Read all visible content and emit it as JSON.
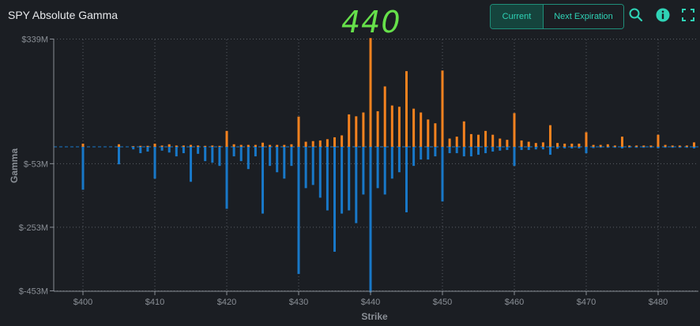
{
  "header": {
    "title": "SPY Absolute Gamma",
    "price_label": "440",
    "tab_current": "Current",
    "tab_next": "Next Expiration",
    "icons": [
      "search-icon",
      "info-icon",
      "fullscreen-icon"
    ]
  },
  "colors": {
    "positive": "#f5821f",
    "negative": "#1878c8",
    "accent": "#2fd3b6",
    "price": "#66e04a"
  },
  "chart_data": {
    "type": "bar",
    "title": "SPY Absolute Gamma",
    "xlabel": "Strike",
    "ylabel": "Gamma",
    "units": "$M",
    "xlim": [
      396,
      485
    ],
    "ylim": [
      -453,
      339
    ],
    "yticks": [
      339,
      -53,
      -253,
      -453
    ],
    "ytick_labels": [
      "$339M",
      "$-53M",
      "$-253M",
      "$-453M"
    ],
    "xticks": [
      400,
      410,
      420,
      430,
      440,
      450,
      460,
      470,
      480
    ],
    "xtick_labels": [
      "$400",
      "$410",
      "$420",
      "$430",
      "$440",
      "$450",
      "$460",
      "$470",
      "$480"
    ],
    "legend": "none",
    "grid": "dotted",
    "series": [
      {
        "key": "call",
        "x": [
          400,
          405,
          407,
          408,
          409,
          410,
          411,
          412,
          413,
          414,
          415,
          416,
          417,
          418,
          419,
          420,
          421,
          422,
          423,
          424,
          425,
          426,
          427,
          428,
          429,
          430,
          431,
          432,
          433,
          434,
          435,
          436,
          437,
          438,
          439,
          440,
          441,
          442,
          443,
          444,
          445,
          446,
          447,
          448,
          449,
          450,
          451,
          452,
          453,
          454,
          455,
          456,
          457,
          458,
          459,
          460,
          461,
          462,
          463,
          464,
          465,
          466,
          467,
          468,
          469,
          470,
          471,
          472,
          473,
          474,
          475,
          476,
          477,
          478,
          479,
          480,
          481,
          482,
          483,
          484,
          485
        ],
        "values": [
          10,
          8,
          2,
          3,
          3,
          10,
          4,
          8,
          4,
          4,
          6,
          4,
          3,
          4,
          3,
          50,
          8,
          6,
          6,
          6,
          13,
          6,
          6,
          6,
          8,
          95,
          16,
          18,
          20,
          24,
          30,
          36,
          102,
          96,
          108,
          342,
          112,
          190,
          130,
          126,
          238,
          120,
          108,
          86,
          74,
          240,
          26,
          32,
          80,
          40,
          38,
          50,
          38,
          26,
          22,
          106,
          20,
          16,
          12,
          14,
          68,
          12,
          10,
          10,
          10,
          46,
          6,
          6,
          8,
          4,
          32,
          4,
          4,
          4,
          4,
          38,
          6,
          4,
          4,
          4,
          14
        ]
      },
      {
        "key": "put",
        "x": [
          400,
          405,
          407,
          408,
          409,
          410,
          411,
          412,
          413,
          414,
          415,
          416,
          417,
          418,
          419,
          420,
          421,
          422,
          423,
          424,
          425,
          426,
          427,
          428,
          429,
          430,
          431,
          432,
          433,
          434,
          435,
          436,
          437,
          438,
          439,
          440,
          441,
          442,
          443,
          444,
          445,
          446,
          447,
          448,
          449,
          450,
          451,
          452,
          453,
          454,
          455,
          456,
          457,
          458,
          459,
          460,
          461,
          462,
          463,
          464,
          465,
          466,
          467,
          468,
          469,
          470,
          471,
          472,
          473,
          474,
          475,
          476,
          477,
          478,
          479,
          480,
          481,
          482,
          483,
          484,
          485
        ],
        "values": [
          -135,
          -55,
          -8,
          -20,
          -15,
          -100,
          -12,
          -18,
          -30,
          -20,
          -110,
          -22,
          -45,
          -50,
          -60,
          -195,
          -30,
          -45,
          -70,
          -30,
          -210,
          -60,
          -80,
          -100,
          -60,
          -400,
          -130,
          -120,
          -160,
          -200,
          -330,
          -210,
          -200,
          -240,
          -150,
          -458,
          -130,
          -150,
          -100,
          -80,
          -206,
          -60,
          -40,
          -40,
          -30,
          -172,
          -20,
          -20,
          -30,
          -30,
          -25,
          -20,
          -15,
          -12,
          -10,
          -60,
          -10,
          -10,
          -8,
          -8,
          -25,
          -6,
          -5,
          -5,
          -5,
          -20,
          -4,
          -3,
          -3,
          -3,
          -5,
          -3,
          -3,
          -3,
          -3,
          -5,
          -3,
          -3,
          -3,
          -3,
          -5
        ]
      }
    ]
  }
}
